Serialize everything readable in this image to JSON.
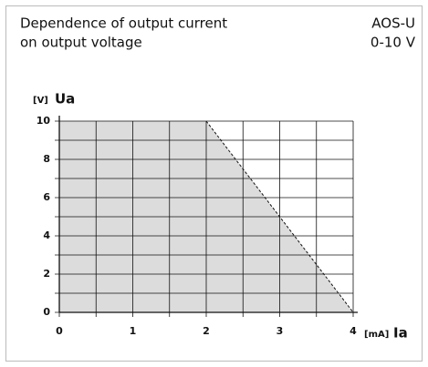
{
  "chart_data": {
    "type": "area",
    "title_lines": [
      "Dependence of output current",
      "on output voltage"
    ],
    "model_lines": [
      "AOS-U",
      "0-10 V"
    ],
    "x_axis_unit": "[mA]",
    "x_axis_label": "Ia",
    "y_axis_unit": "[V]",
    "y_axis_label": "Ua",
    "x": [
      0,
      2,
      4
    ],
    "values": [
      10,
      10,
      0
    ],
    "color": "#dcdcdc",
    "xlim": [
      0,
      4
    ],
    "ylim": [
      0,
      10
    ],
    "xticks": [
      0,
      1,
      2,
      3,
      4
    ],
    "yticks": [
      0,
      2,
      4,
      6,
      8,
      10
    ],
    "xgrid": [
      0,
      0.5,
      1,
      1.5,
      2,
      2.5,
      3,
      3.5,
      4
    ],
    "ygrid": [
      0,
      1,
      2,
      3,
      4,
      5,
      6,
      7,
      8,
      9,
      10
    ],
    "grid": true
  }
}
